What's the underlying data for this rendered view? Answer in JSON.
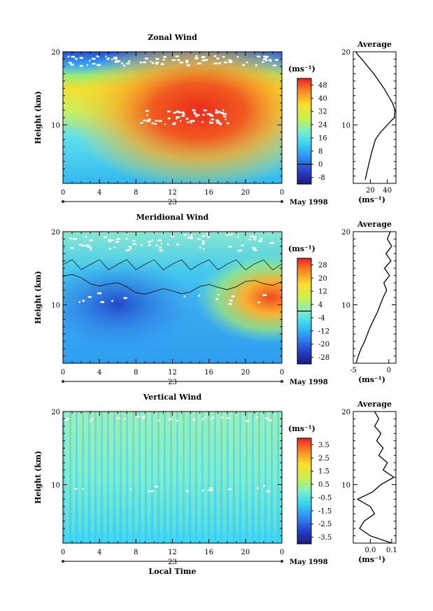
{
  "figure": {
    "xlabel": "Local Time",
    "date_label": "May 1998",
    "day_label": "23",
    "unit_label_colorbar": "(ms⁻¹)",
    "unit_label_profile": "(ms⁻¹)",
    "average_title": "Average",
    "ylabel": "Height (km)"
  },
  "chart_data": [
    {
      "type": "heatmap",
      "title": "Zonal Wind",
      "xlabel": "Local Time",
      "ylabel": "Height (km)",
      "x_ticks": [
        "0",
        "4",
        "8",
        "12",
        "16",
        "20",
        "0"
      ],
      "xlim": [
        0,
        24
      ],
      "y_ticks": [
        "10",
        "20"
      ],
      "ylim": [
        2,
        20
      ],
      "colorbar": {
        "unit": "(ms⁻¹)",
        "ticks": [
          "-8",
          "0",
          "8",
          "16",
          "24",
          "32",
          "40",
          "48"
        ],
        "range": [
          -12,
          52
        ],
        "zero_line": 0
      },
      "profile": {
        "title": "Average",
        "x_ticks": [
          "20",
          "40"
        ],
        "xlim": [
          0,
          50
        ],
        "xlabel": "(ms⁻¹)",
        "heights": [
          2.5,
          4,
          6,
          8,
          9,
          10,
          11,
          12,
          13,
          14,
          15,
          16,
          17,
          18,
          19,
          19.5,
          20
        ],
        "values": [
          14,
          17,
          21,
          26,
          32,
          40,
          48,
          49,
          46,
          41,
          36,
          30,
          24,
          17,
          10,
          6,
          3
        ]
      }
    },
    {
      "type": "heatmap",
      "title": "Meridional Wind",
      "xlabel": "Local Time",
      "ylabel": "Height (km)",
      "x_ticks": [
        "0",
        "4",
        "8",
        "12",
        "16",
        "20",
        "0"
      ],
      "xlim": [
        0,
        24
      ],
      "y_ticks": [
        "10",
        "20"
      ],
      "ylim": [
        2,
        20
      ],
      "colorbar": {
        "unit": "(ms⁻¹)",
        "ticks": [
          "-28",
          "-20",
          "-12",
          "-4",
          "4",
          "12",
          "20",
          "28"
        ],
        "range": [
          -32,
          32
        ],
        "zero_line": 0
      },
      "profile": {
        "title": "Average",
        "x_ticks": [
          "-5",
          "0"
        ],
        "xlim": [
          -5,
          1
        ],
        "xlabel": "(ms⁻¹)",
        "heights": [
          2,
          3,
          4,
          5,
          6,
          7,
          8,
          9,
          10,
          11,
          12,
          13,
          14,
          15,
          16,
          17,
          18,
          19,
          20
        ],
        "values": [
          -4.6,
          -4.3,
          -3.9,
          -3.4,
          -3.0,
          -2.6,
          -2.1,
          -1.6,
          -1.2,
          -0.8,
          -0.3,
          -0.7,
          0.1,
          -0.6,
          0.3,
          -0.4,
          0.4,
          -0.2,
          0.2
        ]
      }
    },
    {
      "type": "heatmap",
      "title": "Vertical Wind",
      "xlabel": "Local Time",
      "ylabel": "Height (km)",
      "x_ticks": [
        "0",
        "4",
        "8",
        "12",
        "16",
        "20",
        "0"
      ],
      "xlim": [
        0,
        24
      ],
      "y_ticks": [
        "10",
        "20"
      ],
      "ylim": [
        2,
        20
      ],
      "colorbar": {
        "unit": "(ms⁻¹)",
        "ticks": [
          "-3.5",
          "-2.5",
          "-1.5",
          "-0.5",
          "0.5",
          "1.5",
          "2.5",
          "3.5"
        ],
        "range": [
          -4,
          4
        ],
        "zero_line": null
      },
      "profile": {
        "title": "Average",
        "x_ticks": [
          "0.0",
          "0.1"
        ],
        "xlim": [
          -0.08,
          0.12
        ],
        "xlabel": "(ms⁻¹)",
        "heights": [
          2,
          3,
          4,
          5,
          6,
          7,
          8,
          9,
          10,
          11,
          12,
          13,
          14,
          15,
          16,
          17,
          18,
          19,
          20
        ],
        "values": [
          0.1,
          0.0,
          -0.05,
          -0.03,
          0.02,
          0.0,
          -0.06,
          0.01,
          0.05,
          0.11,
          0.06,
          0.08,
          0.04,
          0.06,
          0.03,
          0.05,
          0.02,
          0.04,
          0.02
        ]
      }
    }
  ]
}
